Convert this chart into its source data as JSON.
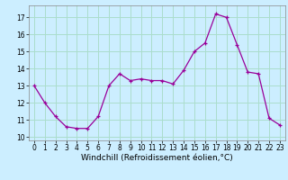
{
  "hours": [
    0,
    1,
    2,
    3,
    4,
    5,
    6,
    7,
    8,
    9,
    10,
    11,
    12,
    13,
    14,
    15,
    16,
    17,
    18,
    19,
    20,
    21,
    22,
    23
  ],
  "values": [
    13.0,
    12.0,
    11.2,
    10.6,
    10.5,
    10.5,
    11.2,
    13.0,
    13.7,
    13.3,
    13.4,
    13.3,
    13.3,
    13.1,
    13.9,
    15.0,
    15.5,
    17.2,
    17.0,
    15.4,
    13.8,
    13.7,
    11.1,
    10.7
  ],
  "line_color": "#990099",
  "marker": "+",
  "bg_color": "#cceeff",
  "grid_color": "#aaddcc",
  "xlabel": "Windchill (Refroidissement éolien,°C)",
  "ylim": [
    9.8,
    17.7
  ],
  "yticks": [
    10,
    11,
    12,
    13,
    14,
    15,
    16,
    17
  ],
  "xticks": [
    0,
    1,
    2,
    3,
    4,
    5,
    6,
    7,
    8,
    9,
    10,
    11,
    12,
    13,
    14,
    15,
    16,
    17,
    18,
    19,
    20,
    21,
    22,
    23
  ],
  "tick_fontsize": 5.5,
  "xlabel_fontsize": 6.5,
  "marker_size": 3,
  "linewidth": 0.9
}
